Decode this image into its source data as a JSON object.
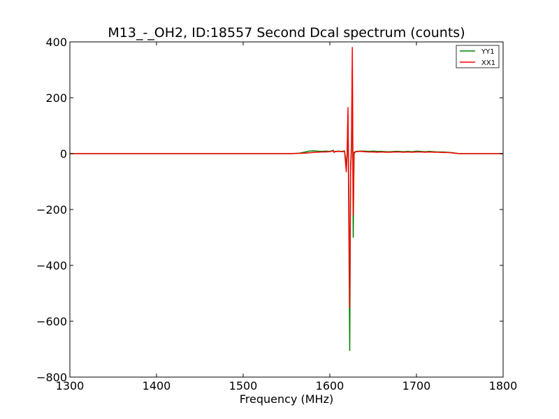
{
  "chart_data": {
    "type": "line",
    "title": "M13_-_OH2, ID:18557 Second Dcal spectrum (counts)",
    "xlabel": "Frequency (MHz)",
    "ylabel": "",
    "xlim": [
      1300,
      1800
    ],
    "ylim": [
      -800,
      400
    ],
    "x_ticks": [
      1300,
      1400,
      1500,
      1600,
      1700,
      1800
    ],
    "y_ticks": [
      -800,
      -600,
      -400,
      -200,
      0,
      200,
      400
    ],
    "x_tick_labels": [
      "1300",
      "1400",
      "1500",
      "1600",
      "1700",
      "1800"
    ],
    "y_tick_labels": [
      "−800",
      "−600",
      "−400",
      "−200",
      "0",
      "200",
      "400"
    ],
    "grid": false,
    "legend_position": "top-right",
    "series": [
      {
        "name": "YY1",
        "color": "#008000",
        "x": [
          1300,
          1400,
          1500,
          1555,
          1565,
          1572,
          1576,
          1580,
          1585,
          1590,
          1595,
          1600,
          1604,
          1605,
          1606,
          1610,
          1614,
          1617,
          1619,
          1620,
          1621,
          1622,
          1623,
          1624,
          1625,
          1626,
          1627,
          1628,
          1630,
          1635,
          1640,
          1645,
          1650,
          1655,
          1660,
          1665,
          1670,
          1675,
          1680,
          1685,
          1690,
          1695,
          1700,
          1705,
          1710,
          1715,
          1720,
          1725,
          1730,
          1735,
          1740,
          1745,
          1750,
          1760,
          1800
        ],
        "y": [
          0,
          0,
          0,
          0,
          2,
          6,
          9,
          10,
          9,
          8,
          9,
          8,
          12,
          4,
          8,
          9,
          8,
          10,
          -40,
          2,
          140,
          -280,
          -705,
          -60,
          10,
          310,
          -300,
          0,
          8,
          9,
          9,
          8,
          9,
          8,
          8,
          7,
          7,
          8,
          8,
          7,
          8,
          7,
          9,
          8,
          7,
          8,
          7,
          6,
          6,
          5,
          4,
          2,
          0,
          0,
          0
        ]
      },
      {
        "name": "XX1",
        "color": "#ff0000",
        "x": [
          1300,
          1400,
          1500,
          1555,
          1565,
          1572,
          1576,
          1580,
          1585,
          1590,
          1595,
          1600,
          1604,
          1605,
          1606,
          1610,
          1614,
          1617,
          1619,
          1620,
          1621,
          1622,
          1623,
          1624,
          1625,
          1626,
          1627,
          1628,
          1630,
          1635,
          1640,
          1645,
          1650,
          1655,
          1660,
          1665,
          1670,
          1675,
          1680,
          1685,
          1690,
          1695,
          1700,
          1705,
          1710,
          1715,
          1720,
          1725,
          1730,
          1735,
          1740,
          1745,
          1750,
          1760,
          1800
        ],
        "y": [
          0,
          0,
          0,
          0,
          1,
          2,
          3,
          4,
          5,
          6,
          6,
          7,
          10,
          5,
          7,
          8,
          7,
          8,
          -65,
          0,
          165,
          -180,
          -550,
          -40,
          30,
          380,
          -220,
          5,
          7,
          8,
          7,
          6,
          6,
          5,
          6,
          5,
          5,
          6,
          6,
          5,
          6,
          5,
          6,
          6,
          5,
          6,
          5,
          5,
          4,
          4,
          3,
          1,
          0,
          0,
          0
        ]
      }
    ]
  }
}
